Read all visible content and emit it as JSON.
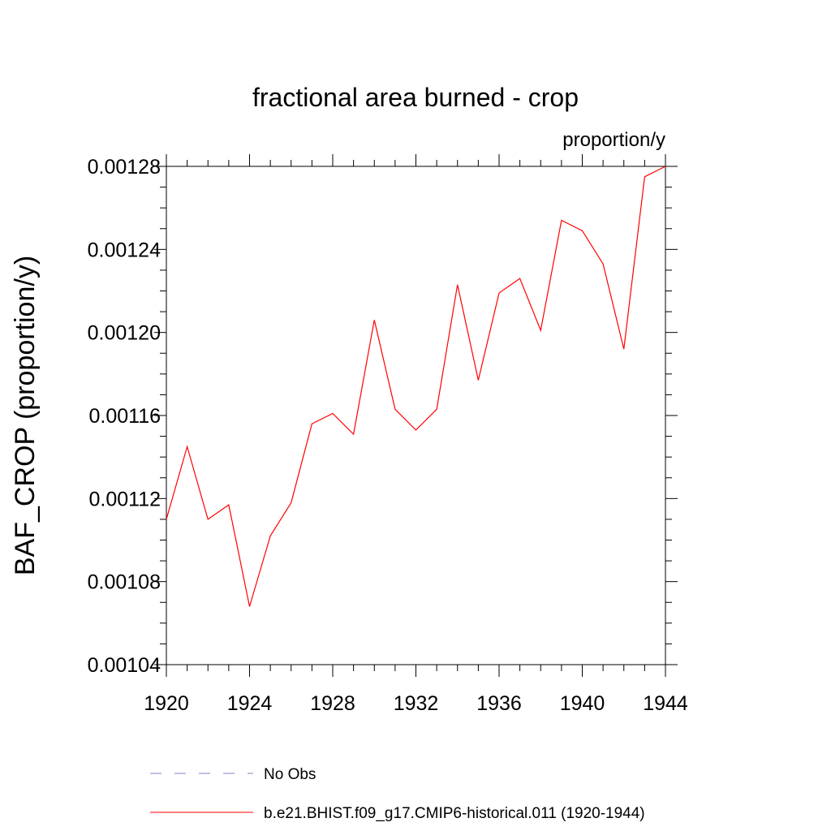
{
  "chart_data": {
    "type": "line",
    "title": "fractional area burned - crop",
    "units_label": "proportion/y",
    "ylabel": "BAF_CROP  (proportion/y)",
    "xlabel": "",
    "xlim": [
      1920,
      1944
    ],
    "ylim": [
      0.00104,
      0.00128
    ],
    "x_ticks": [
      1920,
      1924,
      1928,
      1932,
      1936,
      1940,
      1944
    ],
    "x_tick_labels": [
      "1920",
      "1924",
      "1928",
      "1932",
      "1936",
      "1940",
      "1944"
    ],
    "y_ticks": [
      0.00104,
      0.00108,
      0.00112,
      0.00116,
      0.0012,
      0.00124,
      0.00128
    ],
    "y_tick_labels": [
      "0.00104",
      "0.00108",
      "0.00112",
      "0.00116",
      "0.00120",
      "0.00124",
      "0.00128"
    ],
    "grid": false,
    "legend_position": "bottom",
    "series": [
      {
        "name": "b.e21.BHIST.f09_g17.CMIP6-historical.011 (1920-1944)",
        "color": "#ff0000",
        "style": "solid",
        "x": [
          1920,
          1921,
          1922,
          1923,
          1924,
          1925,
          1926,
          1927,
          1928,
          1929,
          1930,
          1931,
          1932,
          1933,
          1934,
          1935,
          1936,
          1937,
          1938,
          1939,
          1940,
          1941,
          1942,
          1943,
          1944
        ],
        "values": [
          0.00111,
          0.001145,
          0.00111,
          0.001117,
          0.001068,
          0.001102,
          0.001118,
          0.001156,
          0.001161,
          0.001151,
          0.001206,
          0.001163,
          0.001153,
          0.001163,
          0.001223,
          0.001177,
          0.001219,
          0.001226,
          0.001201,
          0.001254,
          0.001249,
          0.001233,
          0.001192,
          0.001275,
          0.00128
        ]
      }
    ],
    "legend": [
      {
        "label": "No Obs",
        "color": "#8080c0",
        "style": "dashed"
      },
      {
        "label": "b.e21.BHIST.f09_g17.CMIP6-historical.011 (1920-1944)",
        "color": "#ff0000",
        "style": "solid"
      }
    ]
  }
}
